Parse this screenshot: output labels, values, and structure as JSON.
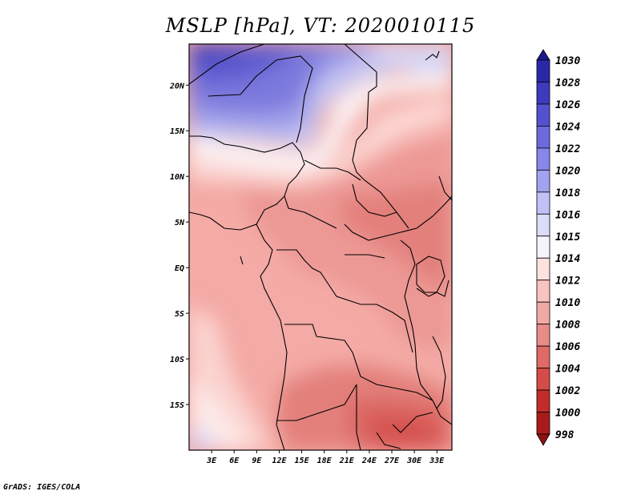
{
  "title": "MSLP [hPa], VT: 2020010115",
  "credit": "GrADS: IGES/COLA",
  "map": {
    "lon_range": [
      0,
      35
    ],
    "lat_range": [
      -20,
      24.5
    ],
    "lon_ticks": [
      "3E",
      "6E",
      "9E",
      "12E",
      "15E",
      "18E",
      "21E",
      "24E",
      "27E",
      "30E",
      "33E"
    ],
    "lon_tick_values": [
      3,
      6,
      9,
      12,
      15,
      18,
      21,
      24,
      27,
      30,
      33
    ],
    "lat_ticks": [
      "20N",
      "15N",
      "10N",
      "5N",
      "EQ",
      "5S",
      "10S",
      "15S"
    ],
    "lat_tick_values": [
      20,
      15,
      10,
      5,
      0,
      -5,
      -10,
      -15
    ]
  },
  "colorbar": {
    "levels": [
      "1030",
      "1028",
      "1026",
      "1024",
      "1022",
      "1020",
      "1018",
      "1016",
      "1015",
      "1014",
      "1012",
      "1010",
      "1008",
      "1006",
      "1004",
      "1002",
      "1000",
      "998"
    ],
    "colors": [
      "#1d1a8c",
      "#2b28a8",
      "#3d3abd",
      "#5451cf",
      "#6d6ade",
      "#8886e8",
      "#a3a2ef",
      "#c2c1f6",
      "#dcdcfa",
      "#f4f4fc",
      "#fde2e0",
      "#f8c4bf",
      "#f1a9a3",
      "#e98b86",
      "#e06a66",
      "#d44b47",
      "#c22c2a",
      "#a91b1b",
      "#8e1212"
    ]
  }
}
